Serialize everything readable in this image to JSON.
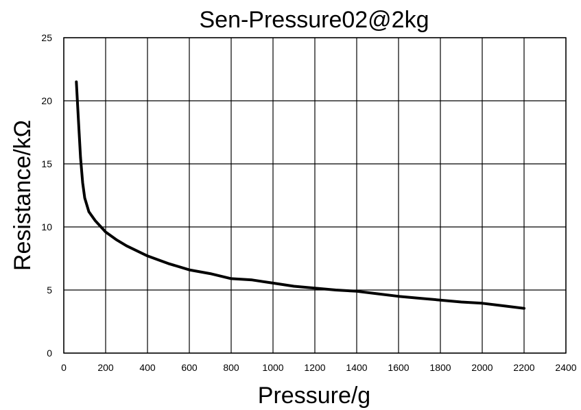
{
  "chart_data": {
    "type": "line",
    "title": "Sen-Pressure02@2kg",
    "xlabel": "Pressure/g",
    "ylabel": "Resistance/kΩ",
    "xlim": [
      0,
      2400
    ],
    "ylim": [
      0,
      25
    ],
    "x_ticks": [
      "0",
      "200",
      "400",
      "600",
      "800",
      "1000",
      "1200",
      "1400",
      "1600",
      "1800",
      "2000",
      "2200",
      "2400"
    ],
    "y_ticks": [
      "0",
      "5",
      "10",
      "15",
      "20",
      "25"
    ],
    "grid": true,
    "series": [
      {
        "x": [
          60,
          70,
          80,
          90,
          100,
          120,
          150,
          200,
          250,
          300,
          400,
          500,
          600,
          700,
          800,
          900,
          1000,
          1100,
          1200,
          1300,
          1400,
          1500,
          1600,
          1700,
          1800,
          1900,
          2000,
          2100,
          2200
        ],
        "values": [
          21.5,
          18.5,
          15.5,
          13.5,
          12.3,
          11.2,
          10.5,
          9.6,
          9.0,
          8.5,
          7.7,
          7.1,
          6.6,
          6.3,
          5.9,
          5.8,
          5.55,
          5.3,
          5.15,
          5.0,
          4.9,
          4.7,
          4.5,
          4.35,
          4.2,
          4.05,
          3.95,
          3.75,
          3.55
        ],
        "color": "#000000"
      }
    ]
  }
}
